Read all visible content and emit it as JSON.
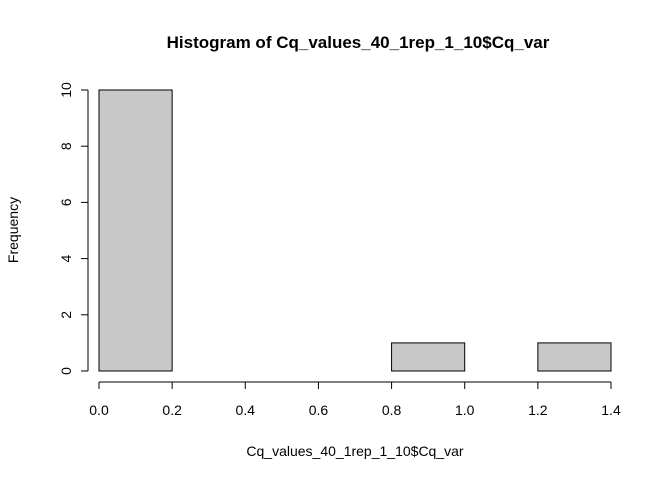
{
  "chart_data": {
    "type": "bar",
    "title": "Histogram of Cq_values_40_1rep_1_10$Cq_var",
    "xlabel": "Cq_values_40_1rep_1_10$Cq_var",
    "ylabel": "Frequency",
    "bins": [
      {
        "x0": 0.0,
        "x1": 0.2,
        "count": 10
      },
      {
        "x0": 0.2,
        "x1": 0.4,
        "count": 0
      },
      {
        "x0": 0.4,
        "x1": 0.6,
        "count": 0
      },
      {
        "x0": 0.6,
        "x1": 0.8,
        "count": 0
      },
      {
        "x0": 0.8,
        "x1": 1.0,
        "count": 1
      },
      {
        "x0": 1.0,
        "x1": 1.2,
        "count": 0
      },
      {
        "x0": 1.2,
        "x1": 1.4,
        "count": 1
      }
    ],
    "xlim": [
      0.0,
      1.4
    ],
    "ylim": [
      0,
      10
    ],
    "x_ticks": [
      0.0,
      0.2,
      0.4,
      0.6,
      0.8,
      1.0,
      1.2,
      1.4
    ],
    "x_tick_labels": [
      "0.0",
      "0.2",
      "0.4",
      "0.6",
      "0.8",
      "1.0",
      "1.2",
      "1.4"
    ],
    "y_ticks": [
      0,
      2,
      4,
      6,
      8,
      10
    ],
    "y_tick_labels": [
      "0",
      "2",
      "4",
      "6",
      "8",
      "10"
    ],
    "bar_color": "#c8c8c8",
    "grid": false,
    "legend": "none"
  }
}
